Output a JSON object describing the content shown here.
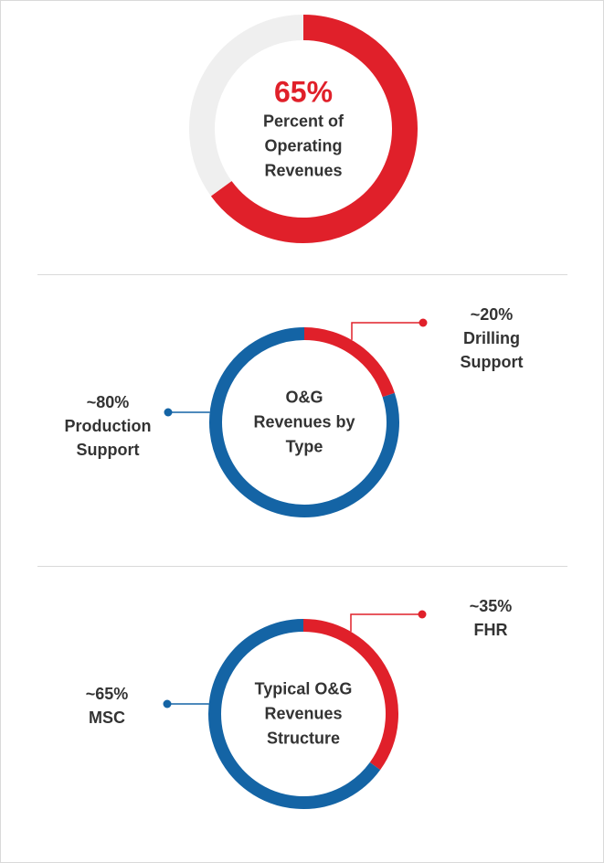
{
  "chart_data": [
    {
      "type": "donut",
      "values": [
        65,
        35
      ],
      "value_labels": [
        "65%",
        null
      ],
      "categories": [
        null,
        null
      ],
      "colors": [
        "#e0202a",
        "#efefef"
      ],
      "center_label": "Percent of Operating Revenues"
    },
    {
      "type": "donut",
      "values": [
        20,
        80
      ],
      "value_labels": [
        "~20%",
        "~80%"
      ],
      "categories": [
        "Drilling Support",
        "Production Support"
      ],
      "colors": [
        "#e0202a",
        "#1464a5"
      ],
      "center_label": "O&G Revenues by Type"
    },
    {
      "type": "donut",
      "values": [
        35,
        65
      ],
      "value_labels": [
        "~35%",
        "~65%"
      ],
      "categories": [
        "FHR",
        "MSC"
      ],
      "colors": [
        "#e0202a",
        "#1464a5"
      ],
      "center_label": "Typical O&G Revenues Structure"
    }
  ]
}
